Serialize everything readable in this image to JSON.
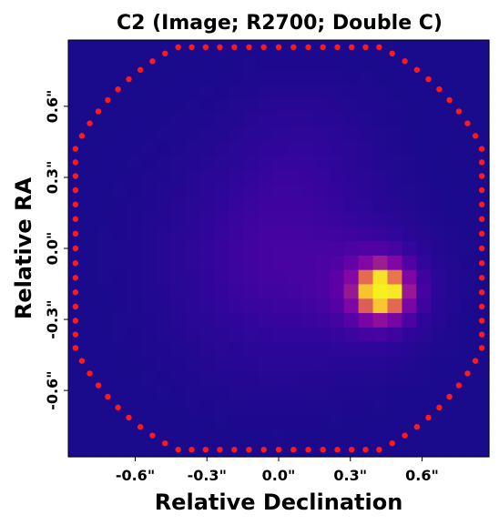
{
  "chart_data": {
    "type": "heatmap",
    "title": "C2 (Image; R2700; Double C)",
    "xlabel": "Relative Declination",
    "ylabel": "Relative RA",
    "xlim": [
      -0.88,
      0.88
    ],
    "ylim": [
      -0.88,
      0.88
    ],
    "x_ticks": [
      "-0.6\"",
      "-0.3\"",
      "0.0\"",
      "0.3\"",
      "0.6\""
    ],
    "x_tick_values": [
      -0.6,
      -0.3,
      0.0,
      0.3,
      0.6
    ],
    "y_ticks": [
      "-0.6\"",
      "-0.3\"",
      "0.0\"",
      "0.3\"",
      "0.6\""
    ],
    "y_tick_values": [
      -0.6,
      -0.3,
      0.0,
      0.3,
      0.6
    ],
    "colormap": "plasma",
    "background_color": "#1a0a8c",
    "peak": {
      "x": 0.43,
      "y": -0.18,
      "intensity": 1.0
    },
    "diffuse_emission": {
      "x": 0.0,
      "y": -0.05,
      "intensity": 0.18
    },
    "mask_boundary_color": "#ff1a1a",
    "mask_radius": 0.88,
    "mask_points_count": 96,
    "grid": false,
    "legend": false
  }
}
